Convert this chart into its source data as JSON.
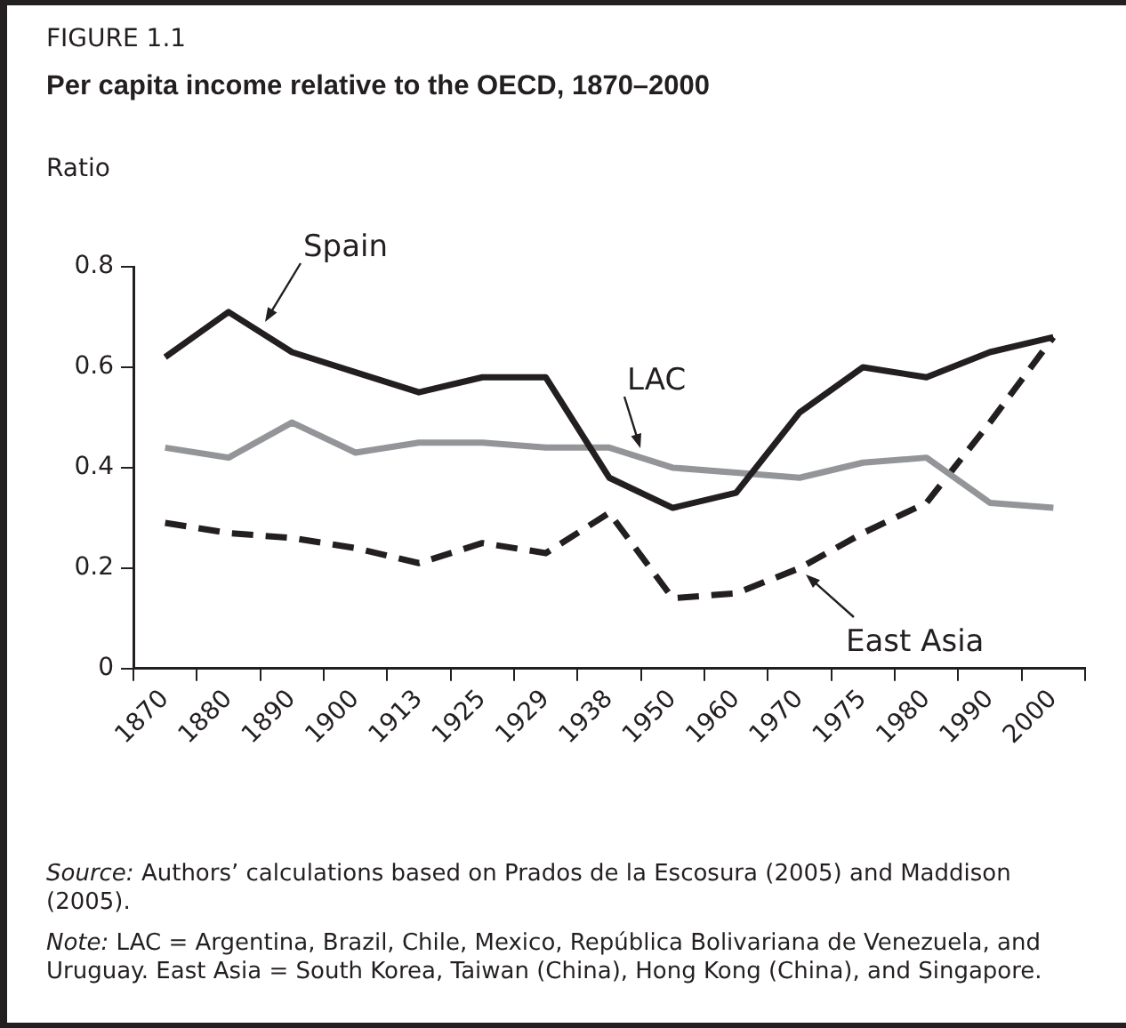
{
  "chart_data": {
    "type": "line",
    "subtitle": "FIGURE 1.1",
    "title": "Per capita income relative to the OECD, 1870–2000",
    "ylabel": "Ratio",
    "categories": [
      "1870",
      "1880",
      "1890",
      "1900",
      "1913",
      "1925",
      "1929",
      "1938",
      "1950",
      "1960",
      "1970",
      "1975",
      "1980",
      "1990",
      "2000"
    ],
    "series": [
      {
        "name": "Spain",
        "color": "#231f20",
        "line_style": "solid",
        "values": [
          0.62,
          0.71,
          0.63,
          0.59,
          0.55,
          0.58,
          0.58,
          0.38,
          0.32,
          0.35,
          0.51,
          0.6,
          0.58,
          0.63,
          0.66
        ]
      },
      {
        "name": "LAC",
        "color": "#939598",
        "line_style": "solid",
        "values": [
          0.44,
          0.42,
          0.49,
          0.43,
          0.45,
          0.45,
          0.44,
          0.44,
          0.4,
          0.39,
          0.38,
          0.41,
          0.42,
          0.33,
          0.32
        ]
      },
      {
        "name": "East Asia",
        "color": "#231f20",
        "line_style": "dashed",
        "values": [
          0.29,
          0.27,
          0.26,
          0.24,
          0.21,
          0.25,
          0.23,
          0.31,
          0.14,
          0.15,
          0.2,
          0.27,
          0.33,
          0.49,
          0.66
        ]
      }
    ],
    "ylim": [
      0,
      0.8
    ],
    "yticks": [
      0,
      0.2,
      0.4,
      0.6,
      0.8
    ],
    "grid": false,
    "marker": "none",
    "annotations": [
      "Source: Authors’ calculations based on Prados de la Escosura (2005) and Maddison (2005).",
      "Note: LAC = Argentina, Brazil, Chile, Mexico, República Bolivariana de Venezuela, and Uruguay. East Asia = South Korea, Taiwan (China), Hong Kong (China), and Singapore."
    ]
  }
}
